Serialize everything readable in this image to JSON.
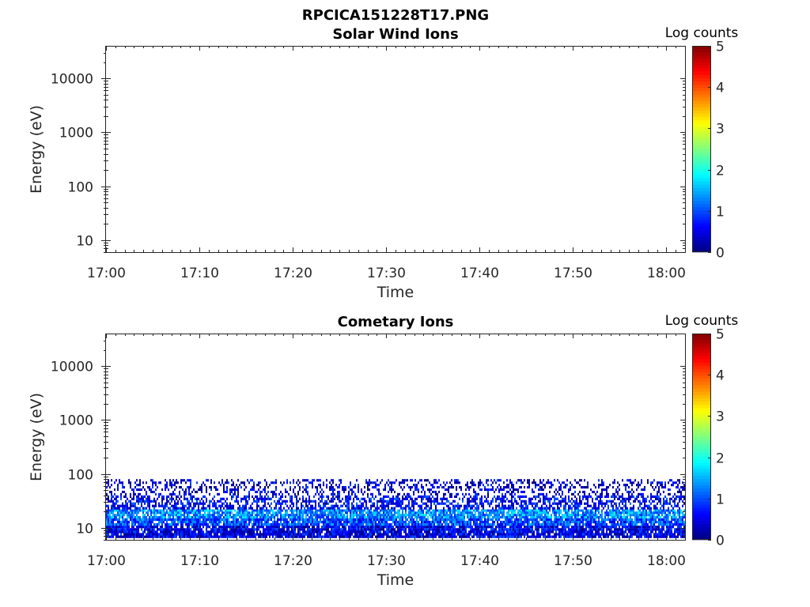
{
  "figure_title": "RPCICA151228T17.PNG",
  "colors": {
    "colormap": [
      "#00007f",
      "#0000ff",
      "#007fff",
      "#00ffff",
      "#7fff7f",
      "#ffff00",
      "#ff7f00",
      "#ff0000",
      "#7f0000"
    ],
    "axis": "#262626",
    "background": "#ffffff"
  },
  "chart_data": [
    {
      "type": "heatmap",
      "title": "Solar Wind Ions",
      "xlabel": "Time",
      "ylabel": "Energy (eV)",
      "x_range": [
        "17:00",
        "18:02"
      ],
      "x_ticks": [
        "17:00",
        "17:10",
        "17:20",
        "17:30",
        "17:40",
        "17:50",
        "18:00"
      ],
      "y_scale": "log",
      "y_range": [
        6,
        40000
      ],
      "y_ticks": [
        {
          "value": 10,
          "label": "10"
        },
        {
          "value": 100,
          "label": "100"
        },
        {
          "value": 1000,
          "label": "1000"
        },
        {
          "value": 10000,
          "label": "10000"
        }
      ],
      "colorbar": {
        "label": "Log counts",
        "range": [
          0,
          5
        ],
        "ticks": [
          "0",
          "1",
          "2",
          "3",
          "4",
          "5"
        ]
      },
      "bands": []
    },
    {
      "type": "heatmap",
      "title": "Cometary Ions",
      "xlabel": "Time",
      "ylabel": "Energy (eV)",
      "x_range": [
        "17:00",
        "18:02"
      ],
      "x_ticks": [
        "17:00",
        "17:10",
        "17:20",
        "17:30",
        "17:40",
        "17:50",
        "18:00"
      ],
      "y_scale": "log",
      "y_range": [
        6,
        40000
      ],
      "y_ticks": [
        {
          "value": 10,
          "label": "10"
        },
        {
          "value": 100,
          "label": "100"
        },
        {
          "value": 1000,
          "label": "1000"
        },
        {
          "value": 10000,
          "label": "10000"
        }
      ],
      "colorbar": {
        "label": "Log counts",
        "range": [
          0,
          5
        ],
        "ticks": [
          "0",
          "1",
          "2",
          "3",
          "4",
          "5"
        ]
      },
      "bands": [
        {
          "energy_min": 6.5,
          "energy_max": 11,
          "log_counts": 0.5,
          "coverage": 0.9
        },
        {
          "energy_min": 11,
          "energy_max": 15,
          "log_counts": 1.0,
          "coverage": 0.9
        },
        {
          "energy_min": 15,
          "energy_max": 22,
          "log_counts": 1.3,
          "coverage": 0.85
        },
        {
          "energy_min": 22,
          "energy_max": 40,
          "log_counts": 0.6,
          "coverage": 0.55
        },
        {
          "energy_min": 40,
          "energy_max": 80,
          "log_counts": 0.4,
          "coverage": 0.35
        }
      ]
    }
  ]
}
